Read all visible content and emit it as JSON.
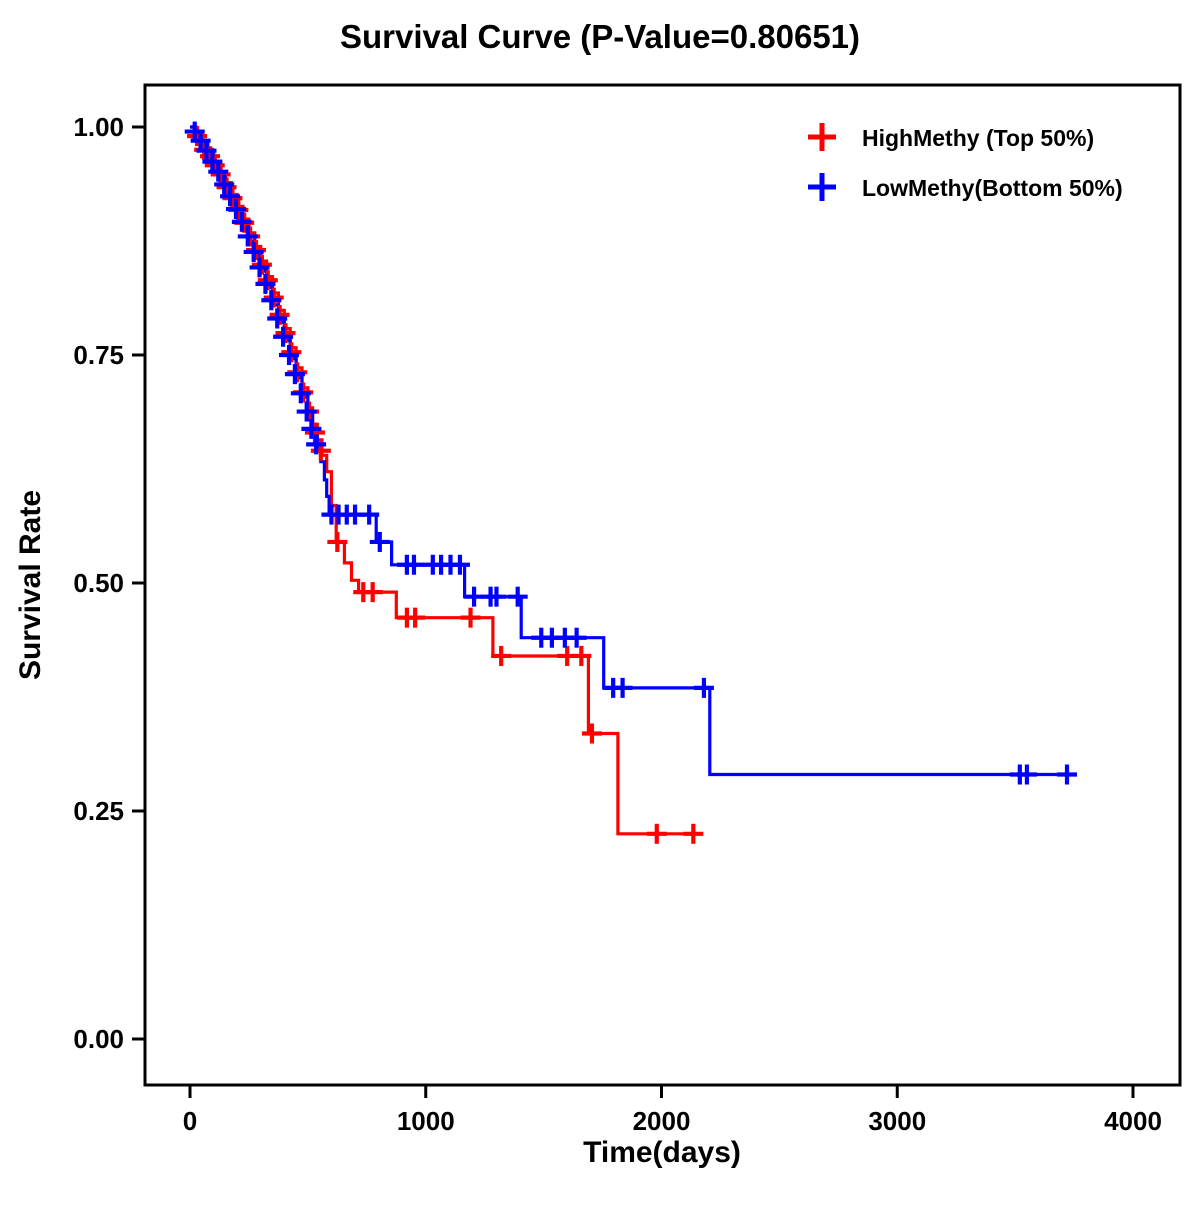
{
  "title": "Survival Curve (P-Value=0.80651)",
  "chart_data": {
    "type": "line",
    "subtype": "kaplan-meier-step",
    "title": "Survival Curve (P-Value=0.80651)",
    "xlabel": "Time(days)",
    "ylabel": "Survival Rate",
    "xlim": [
      -200,
      4200
    ],
    "ylim": [
      -0.05,
      1.05
    ],
    "xtick_values": [
      0,
      1000,
      2000,
      3000,
      4000
    ],
    "xtick_labels": [
      "0",
      "1000",
      "2000",
      "3000",
      "4000"
    ],
    "ytick_values": [
      0,
      0.25,
      0.5,
      0.75,
      1.0
    ],
    "ytick_labels": [
      "0.00",
      "0.25",
      "0.50",
      "0.75",
      "1.00"
    ],
    "grid": false,
    "legend_position": "top-right",
    "p_value": "0.80651",
    "series": [
      {
        "name": "HighMethy (Top 50%)",
        "color": "#FF0000",
        "step_points": [
          [
            0,
            1.0
          ],
          [
            25,
            0.992
          ],
          [
            50,
            0.983
          ],
          [
            75,
            0.972
          ],
          [
            100,
            0.962
          ],
          [
            125,
            0.951
          ],
          [
            150,
            0.939
          ],
          [
            175,
            0.926
          ],
          [
            200,
            0.913
          ],
          [
            225,
            0.899
          ],
          [
            250,
            0.884
          ],
          [
            275,
            0.869
          ],
          [
            300,
            0.853
          ],
          [
            325,
            0.836
          ],
          [
            350,
            0.818
          ],
          [
            375,
            0.799
          ],
          [
            400,
            0.779
          ],
          [
            425,
            0.758
          ],
          [
            450,
            0.736
          ],
          [
            475,
            0.714
          ],
          [
            500,
            0.692
          ],
          [
            520,
            0.674
          ],
          [
            540,
            0.657
          ],
          [
            560,
            0.64
          ],
          [
            580,
            0.622
          ],
          [
            600,
            0.585
          ],
          [
            620,
            0.545
          ],
          [
            655,
            0.522
          ],
          [
            685,
            0.503
          ],
          [
            715,
            0.49
          ],
          [
            875,
            0.462
          ],
          [
            1285,
            0.42
          ],
          [
            1690,
            0.335
          ],
          [
            1815,
            0.225
          ],
          [
            2150,
            0.225
          ]
        ],
        "censor_marks": [
          [
            30,
            0.99
          ],
          [
            60,
            0.975
          ],
          [
            85,
            0.968
          ],
          [
            105,
            0.958
          ],
          [
            130,
            0.948
          ],
          [
            155,
            0.934
          ],
          [
            180,
            0.922
          ],
          [
            205,
            0.909
          ],
          [
            230,
            0.895
          ],
          [
            255,
            0.88
          ],
          [
            280,
            0.865
          ],
          [
            305,
            0.849
          ],
          [
            330,
            0.832
          ],
          [
            355,
            0.813
          ],
          [
            380,
            0.794
          ],
          [
            405,
            0.774
          ],
          [
            430,
            0.753
          ],
          [
            455,
            0.731
          ],
          [
            480,
            0.709
          ],
          [
            505,
            0.688
          ],
          [
            530,
            0.665
          ],
          [
            555,
            0.645
          ],
          [
            625,
            0.545
          ],
          [
            735,
            0.49
          ],
          [
            775,
            0.49
          ],
          [
            920,
            0.462
          ],
          [
            955,
            0.462
          ],
          [
            1190,
            0.462
          ],
          [
            1320,
            0.42
          ],
          [
            1600,
            0.42
          ],
          [
            1660,
            0.42
          ],
          [
            1705,
            0.335
          ],
          [
            1980,
            0.225
          ],
          [
            2135,
            0.225
          ]
        ]
      },
      {
        "name": "LowMethy(Bottom 50%)",
        "color": "#0000FF",
        "step_points": [
          [
            0,
            1.0
          ],
          [
            25,
            0.991
          ],
          [
            50,
            0.981
          ],
          [
            75,
            0.97
          ],
          [
            100,
            0.959
          ],
          [
            125,
            0.947
          ],
          [
            150,
            0.934
          ],
          [
            175,
            0.92
          ],
          [
            200,
            0.906
          ],
          [
            225,
            0.891
          ],
          [
            250,
            0.875
          ],
          [
            275,
            0.859
          ],
          [
            300,
            0.842
          ],
          [
            325,
            0.824
          ],
          [
            350,
            0.805
          ],
          [
            375,
            0.786
          ],
          [
            400,
            0.766
          ],
          [
            425,
            0.746
          ],
          [
            450,
            0.725
          ],
          [
            475,
            0.704
          ],
          [
            500,
            0.684
          ],
          [
            520,
            0.666
          ],
          [
            540,
            0.649
          ],
          [
            555,
            0.633
          ],
          [
            570,
            0.613
          ],
          [
            580,
            0.595
          ],
          [
            590,
            0.575
          ],
          [
            790,
            0.545
          ],
          [
            855,
            0.52
          ],
          [
            1165,
            0.485
          ],
          [
            1405,
            0.44
          ],
          [
            1755,
            0.385
          ],
          [
            2205,
            0.29
          ],
          [
            3750,
            0.29
          ]
        ],
        "censor_marks": [
          [
            20,
            0.995
          ],
          [
            45,
            0.985
          ],
          [
            70,
            0.974
          ],
          [
            95,
            0.962
          ],
          [
            120,
            0.951
          ],
          [
            145,
            0.937
          ],
          [
            170,
            0.924
          ],
          [
            195,
            0.91
          ],
          [
            220,
            0.896
          ],
          [
            245,
            0.88
          ],
          [
            270,
            0.863
          ],
          [
            295,
            0.846
          ],
          [
            320,
            0.828
          ],
          [
            345,
            0.81
          ],
          [
            370,
            0.79
          ],
          [
            395,
            0.77
          ],
          [
            420,
            0.75
          ],
          [
            445,
            0.729
          ],
          [
            470,
            0.708
          ],
          [
            495,
            0.688
          ],
          [
            515,
            0.669
          ],
          [
            535,
            0.652
          ],
          [
            600,
            0.575
          ],
          [
            630,
            0.575
          ],
          [
            665,
            0.575
          ],
          [
            700,
            0.575
          ],
          [
            760,
            0.575
          ],
          [
            805,
            0.545
          ],
          [
            920,
            0.52
          ],
          [
            950,
            0.52
          ],
          [
            1030,
            0.52
          ],
          [
            1065,
            0.52
          ],
          [
            1105,
            0.52
          ],
          [
            1145,
            0.52
          ],
          [
            1205,
            0.485
          ],
          [
            1275,
            0.485
          ],
          [
            1300,
            0.485
          ],
          [
            1390,
            0.485
          ],
          [
            1490,
            0.44
          ],
          [
            1535,
            0.44
          ],
          [
            1590,
            0.44
          ],
          [
            1640,
            0.44
          ],
          [
            1795,
            0.385
          ],
          [
            1835,
            0.385
          ],
          [
            2180,
            0.385
          ],
          [
            3520,
            0.29
          ],
          [
            3550,
            0.29
          ],
          [
            3720,
            0.29
          ]
        ]
      }
    ]
  }
}
